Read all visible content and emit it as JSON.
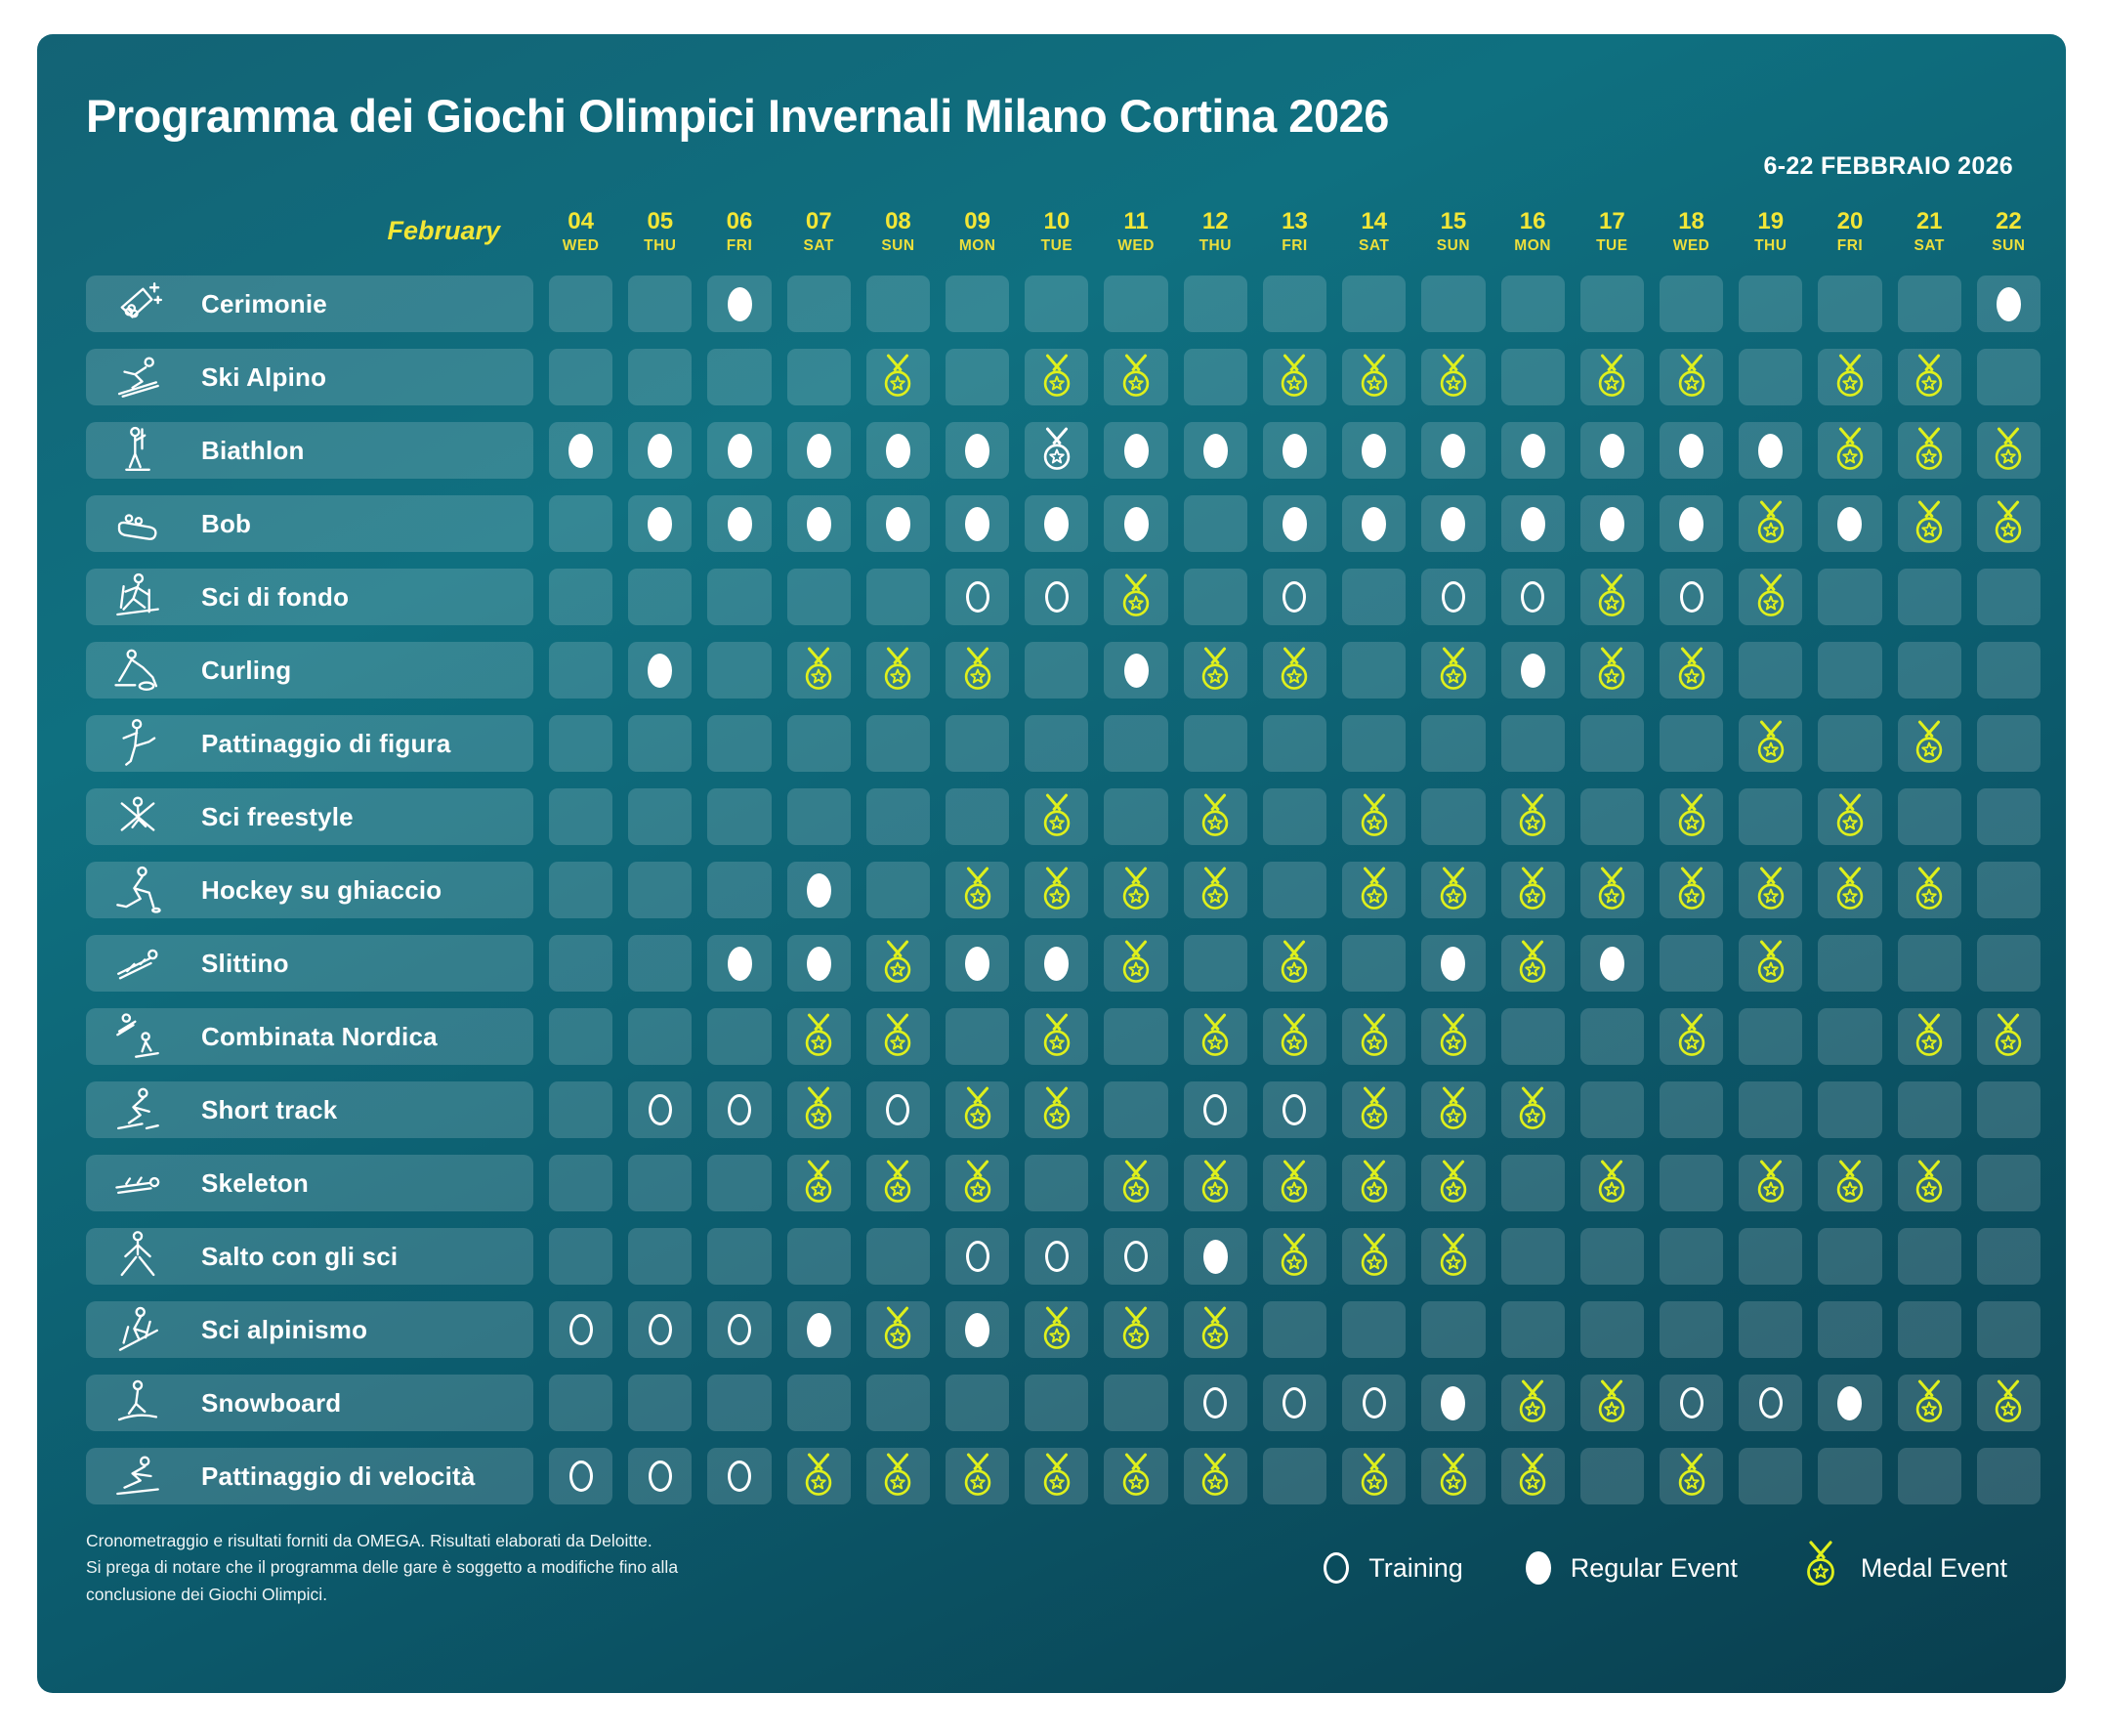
{
  "header": {
    "title": "Programma dei Giochi Olimpici Invernali Milano Cortina 2026",
    "date_range": "6-22 FEBBRAIO 2026",
    "month_label": "February"
  },
  "chart_data": {
    "type": "table",
    "title": "Programma dei Giochi Olimpici Invernali Milano Cortina 2026",
    "subtitle": "6-22 FEBBRAIO 2026",
    "marker_codes": {
      "T": "Training",
      "R": "Regular Event",
      "M": "Medal Event",
      "W": "Medal Event (white icon)"
    },
    "columns": [
      {
        "num": "04",
        "dow": "WED"
      },
      {
        "num": "05",
        "dow": "THU"
      },
      {
        "num": "06",
        "dow": "FRI"
      },
      {
        "num": "07",
        "dow": "SAT"
      },
      {
        "num": "08",
        "dow": "SUN"
      },
      {
        "num": "09",
        "dow": "MON"
      },
      {
        "num": "10",
        "dow": "TUE"
      },
      {
        "num": "11",
        "dow": "WED"
      },
      {
        "num": "12",
        "dow": "THU"
      },
      {
        "num": "13",
        "dow": "FRI"
      },
      {
        "num": "14",
        "dow": "SAT"
      },
      {
        "num": "15",
        "dow": "SUN"
      },
      {
        "num": "16",
        "dow": "MON"
      },
      {
        "num": "17",
        "dow": "TUE"
      },
      {
        "num": "18",
        "dow": "WED"
      },
      {
        "num": "19",
        "dow": "THU"
      },
      {
        "num": "20",
        "dow": "FRI"
      },
      {
        "num": "21",
        "dow": "SAT"
      },
      {
        "num": "22",
        "dow": "SUN"
      }
    ],
    "rows": [
      {
        "name": "Cerimonie",
        "icon": "torch-icon",
        "cells": [
          "",
          "",
          "R",
          "",
          "",
          "",
          "",
          "",
          "",
          "",
          "",
          "",
          "",
          "",
          "",
          "",
          "",
          "",
          "R"
        ]
      },
      {
        "name": "Ski Alpino",
        "icon": "alpine-skiing-icon",
        "cells": [
          "",
          "",
          "",
          "",
          "M",
          "",
          "M",
          "M",
          "",
          "M",
          "M",
          "M",
          "",
          "M",
          "M",
          "",
          "M",
          "M",
          ""
        ]
      },
      {
        "name": "Biathlon",
        "icon": "biathlon-icon",
        "cells": [
          "R",
          "R",
          "R",
          "R",
          "R",
          "R",
          "W",
          "R",
          "R",
          "R",
          "R",
          "R",
          "R",
          "R",
          "R",
          "R",
          "M",
          "M",
          "M"
        ]
      },
      {
        "name": "Bob",
        "icon": "bobsleigh-icon",
        "cells": [
          "",
          "R",
          "R",
          "R",
          "R",
          "R",
          "R",
          "R",
          "",
          "R",
          "R",
          "R",
          "R",
          "R",
          "R",
          "M",
          "R",
          "M",
          "M"
        ]
      },
      {
        "name": "Sci di fondo",
        "icon": "cross-country-icon",
        "cells": [
          "",
          "",
          "",
          "",
          "",
          "T",
          "T",
          "M",
          "",
          "T",
          "",
          "T",
          "T",
          "M",
          "T",
          "M",
          "",
          "",
          ""
        ]
      },
      {
        "name": "Curling",
        "icon": "curling-icon",
        "cells": [
          "",
          "R",
          "",
          "M",
          "M",
          "M",
          "",
          "R",
          "M",
          "M",
          "",
          "M",
          "R",
          "M",
          "M",
          "",
          "",
          "",
          ""
        ]
      },
      {
        "name": "Pattinaggio di figura",
        "icon": "figure-skating-icon",
        "cells": [
          "",
          "",
          "",
          "",
          "",
          "",
          "",
          "",
          "",
          "",
          "",
          "",
          "",
          "",
          "",
          "M",
          "",
          "M",
          ""
        ]
      },
      {
        "name": "Sci freestyle",
        "icon": "freestyle-skiing-icon",
        "cells": [
          "",
          "",
          "",
          "",
          "",
          "",
          "M",
          "",
          "M",
          "",
          "M",
          "",
          "M",
          "",
          "M",
          "",
          "M",
          "",
          ""
        ]
      },
      {
        "name": "Hockey su ghiaccio",
        "icon": "ice-hockey-icon",
        "cells": [
          "",
          "",
          "",
          "R",
          "",
          "M",
          "M",
          "M",
          "M",
          "",
          "M",
          "M",
          "M",
          "M",
          "M",
          "M",
          "M",
          "M",
          ""
        ]
      },
      {
        "name": "Slittino",
        "icon": "luge-icon",
        "cells": [
          "",
          "",
          "R",
          "R",
          "M",
          "R",
          "R",
          "M",
          "",
          "M",
          "",
          "R",
          "M",
          "R",
          "",
          "M",
          "",
          "",
          ""
        ]
      },
      {
        "name": "Combinata Nordica",
        "icon": "nordic-combined-icon",
        "cells": [
          "",
          "",
          "",
          "M",
          "M",
          "",
          "M",
          "",
          "M",
          "M",
          "M",
          "M",
          "",
          "",
          "M",
          "",
          "",
          "M",
          "M"
        ]
      },
      {
        "name": "Short track",
        "icon": "short-track-icon",
        "cells": [
          "",
          "T",
          "T",
          "M",
          "T",
          "M",
          "M",
          "",
          "T",
          "T",
          "M",
          "M",
          "M",
          "",
          "",
          "",
          "",
          "",
          ""
        ]
      },
      {
        "name": "Skeleton",
        "icon": "skeleton-icon",
        "cells": [
          "",
          "",
          "",
          "M",
          "M",
          "M",
          "",
          "M",
          "M",
          "M",
          "M",
          "M",
          "",
          "M",
          "",
          "M",
          "M",
          "M",
          ""
        ]
      },
      {
        "name": "Salto con gli sci",
        "icon": "ski-jumping-icon",
        "cells": [
          "",
          "",
          "",
          "",
          "",
          "T",
          "T",
          "T",
          "R",
          "M",
          "M",
          "M",
          "",
          "",
          "",
          "",
          "",
          "",
          ""
        ]
      },
      {
        "name": "Sci alpinismo",
        "icon": "ski-mountaineering-icon",
        "cells": [
          "T",
          "T",
          "T",
          "R",
          "M",
          "R",
          "M",
          "M",
          "M",
          "",
          "",
          "",
          "",
          "",
          "",
          "",
          "",
          "",
          ""
        ]
      },
      {
        "name": "Snowboard",
        "icon": "snowboard-icon",
        "cells": [
          "",
          "",
          "",
          "",
          "",
          "",
          "",
          "",
          "T",
          "T",
          "T",
          "R",
          "M",
          "M",
          "T",
          "T",
          "R",
          "M",
          "M"
        ]
      },
      {
        "name": "Pattinaggio di velocità",
        "icon": "speed-skating-icon",
        "cells": [
          "T",
          "T",
          "T",
          "M",
          "M",
          "M",
          "M",
          "M",
          "M",
          "",
          "M",
          "M",
          "M",
          "",
          "M",
          "",
          "",
          "",
          ""
        ]
      }
    ]
  },
  "legend": {
    "training": "Training",
    "regular": "Regular Event",
    "medal": "Medal Event"
  },
  "footnote": {
    "line1": "Cronometraggio e risultati forniti da OMEGA. Risultati elaborati da Deloitte.",
    "line2": "Si prega di notare che il programma delle gare è soggetto a modifiche fino alla",
    "line3": "conclusione dei Giochi Olimpici."
  },
  "colors": {
    "date_yellow": "#f2e636",
    "medal_yellow": "#dff01c",
    "white": "#ffffff",
    "panel_top": "#136375",
    "panel_bottom": "#093f4f",
    "cell_overlay": "rgba(255,255,255,0.16)"
  }
}
